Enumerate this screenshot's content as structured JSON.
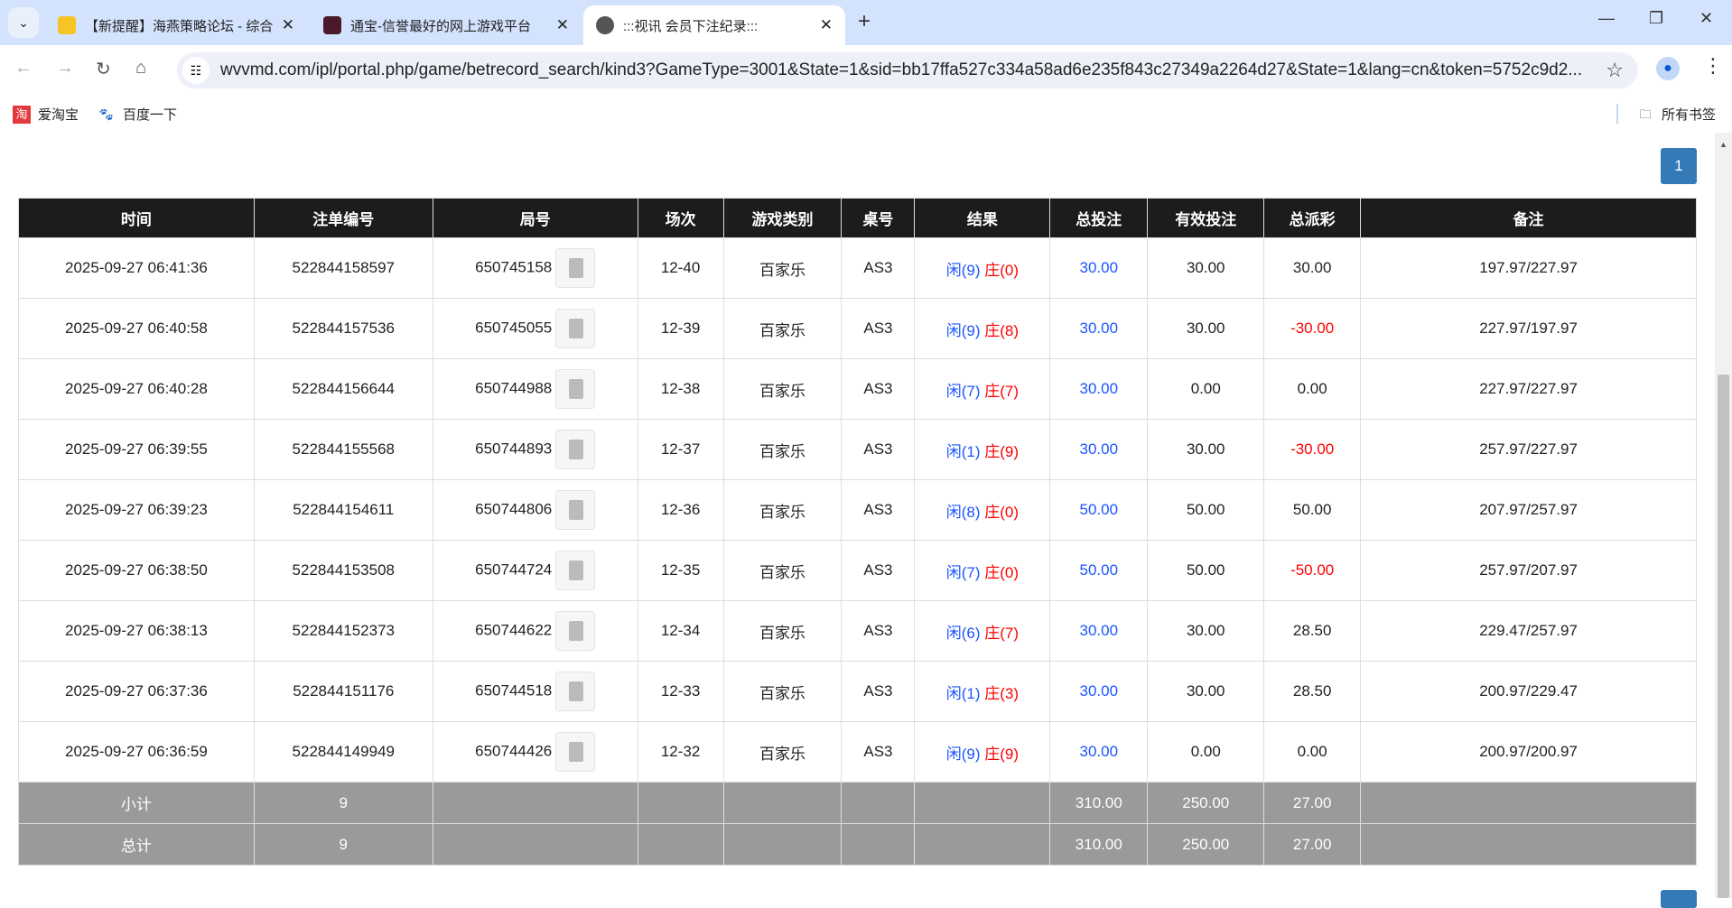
{
  "browser": {
    "tabs": [
      {
        "title": "【新提醒】海燕策略论坛 - 综合",
        "icon": "notice-icon",
        "active": false
      },
      {
        "title": "通宝-信誉最好的网上游戏平台",
        "icon": "site-logo-icon",
        "active": false
      },
      {
        "title": ":::视讯 会员下注纪录:::",
        "icon": "globe-icon",
        "active": true
      }
    ],
    "url": "wvvmd.com/ipl/portal.php/game/betrecord_search/kind3?GameType=3001&State=1&sid=bb17ffa527c334a58ad6e235f843c27349a2264d27&State=1&lang=cn&token=5752c9d2...",
    "bookmarks": [
      {
        "label": "爱淘宝",
        "icon": "taobao-icon"
      },
      {
        "label": "百度一下",
        "icon": "baidu-paw-icon"
      }
    ],
    "all_bookmarks": "所有书签"
  },
  "pagination": {
    "current": "1"
  },
  "table": {
    "headers": [
      "时间",
      "注单编号",
      "局号",
      "场次",
      "游戏类别",
      "桌号",
      "结果",
      "总投注",
      "有效投注",
      "总派彩",
      "备注"
    ],
    "rows": [
      {
        "time": "2025-09-27 06:41:36",
        "bet_id": "522844158597",
        "round": "650745158",
        "shoe": "12-40",
        "game": "百家乐",
        "table": "AS3",
        "player": "闲(9)",
        "banker": "庄(0)",
        "total_bet": "30.00",
        "valid_bet": "30.00",
        "payout": "30.00",
        "payout_negative": false,
        "note": "197.97/227.97"
      },
      {
        "time": "2025-09-27 06:40:58",
        "bet_id": "522844157536",
        "round": "650745055",
        "shoe": "12-39",
        "game": "百家乐",
        "table": "AS3",
        "player": "闲(9)",
        "banker": "庄(8)",
        "total_bet": "30.00",
        "valid_bet": "30.00",
        "payout": "-30.00",
        "payout_negative": true,
        "note": "227.97/197.97"
      },
      {
        "time": "2025-09-27 06:40:28",
        "bet_id": "522844156644",
        "round": "650744988",
        "shoe": "12-38",
        "game": "百家乐",
        "table": "AS3",
        "player": "闲(7)",
        "banker": "庄(7)",
        "total_bet": "30.00",
        "valid_bet": "0.00",
        "payout": "0.00",
        "payout_negative": false,
        "note": "227.97/227.97"
      },
      {
        "time": "2025-09-27 06:39:55",
        "bet_id": "522844155568",
        "round": "650744893",
        "shoe": "12-37",
        "game": "百家乐",
        "table": "AS3",
        "player": "闲(1)",
        "banker": "庄(9)",
        "total_bet": "30.00",
        "valid_bet": "30.00",
        "payout": "-30.00",
        "payout_negative": true,
        "note": "257.97/227.97"
      },
      {
        "time": "2025-09-27 06:39:23",
        "bet_id": "522844154611",
        "round": "650744806",
        "shoe": "12-36",
        "game": "百家乐",
        "table": "AS3",
        "player": "闲(8)",
        "banker": "庄(0)",
        "total_bet": "50.00",
        "valid_bet": "50.00",
        "payout": "50.00",
        "payout_negative": false,
        "note": "207.97/257.97"
      },
      {
        "time": "2025-09-27 06:38:50",
        "bet_id": "522844153508",
        "round": "650744724",
        "shoe": "12-35",
        "game": "百家乐",
        "table": "AS3",
        "player": "闲(7)",
        "banker": "庄(0)",
        "total_bet": "50.00",
        "valid_bet": "50.00",
        "payout": "-50.00",
        "payout_negative": true,
        "note": "257.97/207.97"
      },
      {
        "time": "2025-09-27 06:38:13",
        "bet_id": "522844152373",
        "round": "650744622",
        "shoe": "12-34",
        "game": "百家乐",
        "table": "AS3",
        "player": "闲(6)",
        "banker": "庄(7)",
        "total_bet": "30.00",
        "valid_bet": "30.00",
        "payout": "28.50",
        "payout_negative": false,
        "note": "229.47/257.97"
      },
      {
        "time": "2025-09-27 06:37:36",
        "bet_id": "522844151176",
        "round": "650744518",
        "shoe": "12-33",
        "game": "百家乐",
        "table": "AS3",
        "player": "闲(1)",
        "banker": "庄(3)",
        "total_bet": "30.00",
        "valid_bet": "30.00",
        "payout": "28.50",
        "payout_negative": false,
        "note": "200.97/229.47"
      },
      {
        "time": "2025-09-27 06:36:59",
        "bet_id": "522844149949",
        "round": "650744426",
        "shoe": "12-32",
        "game": "百家乐",
        "table": "AS3",
        "player": "闲(9)",
        "banker": "庄(9)",
        "total_bet": "30.00",
        "valid_bet": "0.00",
        "payout": "0.00",
        "payout_negative": false,
        "note": "200.97/200.97"
      }
    ],
    "summary": [
      {
        "label": "小计",
        "count": "9",
        "total_bet": "310.00",
        "valid_bet": "250.00",
        "payout": "27.00"
      },
      {
        "label": "总计",
        "count": "9",
        "total_bet": "310.00",
        "valid_bet": "250.00",
        "payout": "27.00"
      }
    ]
  },
  "colors": {
    "header_bg": "#1c1c1c",
    "summary_bg": "#9a9a9a",
    "player": "#1a55ff",
    "banker": "#ff0000",
    "accent": "#337ab7"
  }
}
